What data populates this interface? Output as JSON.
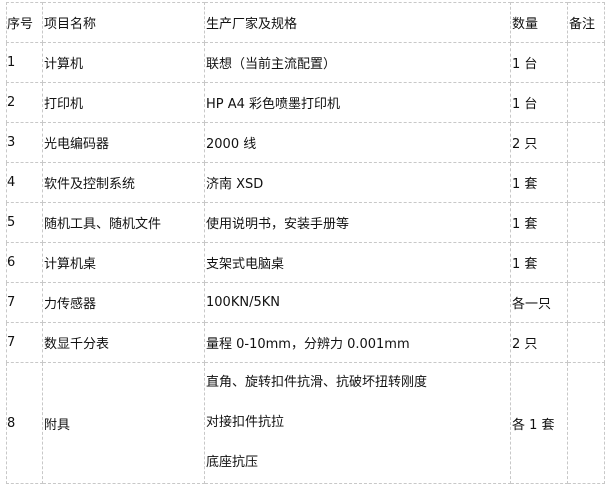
{
  "header": [
    "序号",
    "项目名称",
    "生产厂家及规格",
    "数量",
    "备注"
  ],
  "rows": [
    {
      "no": "1",
      "name": "计算机",
      "spec": [
        "联想（当前主流配置）"
      ],
      "qty": "1 台",
      "note": ""
    },
    {
      "no": "2",
      "name": "打印机",
      "spec": [
        "HP A4 彩色喷墨打印机"
      ],
      "qty": "1 台",
      "note": ""
    },
    {
      "no": "3",
      "name": "光电编码器",
      "spec": [
        "2000 线"
      ],
      "qty": "2 只",
      "note": ""
    },
    {
      "no": "4",
      "name": "软件及控制系统",
      "spec": [
        "济南 XSD"
      ],
      "qty": "1 套",
      "note": ""
    },
    {
      "no": "5",
      "name": "随机工具、随机文件",
      "spec": [
        "使用说明书，安装手册等"
      ],
      "qty": "1 套",
      "note": ""
    },
    {
      "no": "6",
      "name": "计算机桌",
      "spec": [
        "支架式电脑桌"
      ],
      "qty": "1 套",
      "note": ""
    },
    {
      "no": "7",
      "name": "力传感器",
      "spec": [
        "100KN/5KN"
      ],
      "qty": "各一只",
      "note": ""
    },
    {
      "no": "7",
      "name": "数显千分表",
      "spec": [
        "量程 0-10mm，分辨力 0.001mm"
      ],
      "qty": "2 只",
      "note": ""
    },
    {
      "no": "8",
      "name": "附具",
      "spec": [
        "直角、旋转扣件抗滑、抗破坏扭转刚度",
        "对接扣件抗拉",
        "底座抗压"
      ],
      "qty": "各 1 套",
      "note": ""
    }
  ]
}
